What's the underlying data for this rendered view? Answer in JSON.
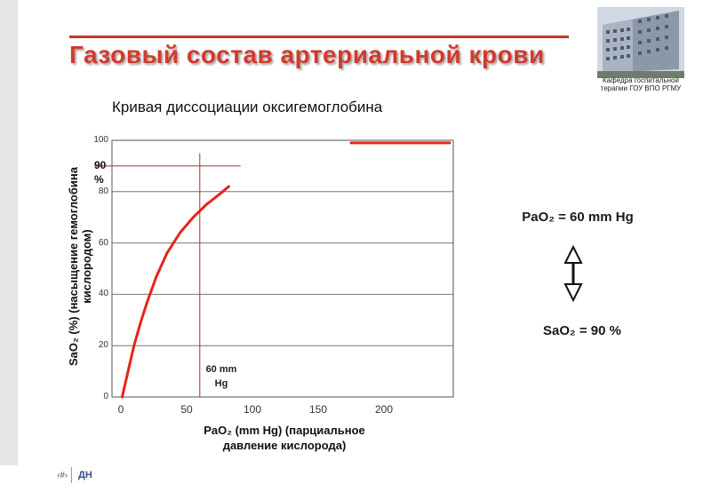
{
  "slide": {
    "title": "Газовый состав артериальной крови",
    "logo_caption": "Кафедра госпитальной терапии ГОУ ВПО РГМУ",
    "footer_page": "‹#›",
    "footer_initials": "ДН"
  },
  "right_panel": {
    "pao2": "PaO₂ = 60 mm Hg",
    "sao2": "SaO₂ = 90 %"
  },
  "chart_data": {
    "type": "line",
    "title": "Кривая диссоциации оксигемоглобина",
    "xlabel": "PaO₂ (mm Hg) (парциальное давление кислорода)",
    "ylabel": "SaO₂ (%) (насыщение гемоглобина кислородом)",
    "xlim": [
      0,
      250
    ],
    "ylim": [
      0,
      100
    ],
    "x_ticks": [
      "0",
      "50",
      "100",
      "150",
      "200"
    ],
    "y_ticks": [
      "0",
      "20",
      "40",
      "60",
      "80",
      "100"
    ],
    "grid": "horizontal",
    "series": [
      {
        "x": [
          1,
          5,
          10,
          15,
          20,
          27,
          35,
          45,
          55,
          65,
          75,
          82
        ],
        "y": [
          0,
          9,
          20,
          29,
          37,
          47,
          56,
          64,
          70,
          75,
          79,
          82
        ],
        "color": "#e8231a"
      },
      {
        "x": [
          175,
          250
        ],
        "y": [
          99,
          99
        ],
        "color": "#e8231a"
      }
    ],
    "reference_lines": [
      {
        "axis": "y",
        "value": 90,
        "x_range": [
          0,
          91
        ],
        "color": "#a03030"
      },
      {
        "axis": "x",
        "value": 60,
        "y_range": [
          0,
          95
        ],
        "color": "#a03030"
      }
    ],
    "annotations": [
      {
        "text": "90 %"
      },
      {
        "text": "60 mm Hg"
      }
    ]
  }
}
